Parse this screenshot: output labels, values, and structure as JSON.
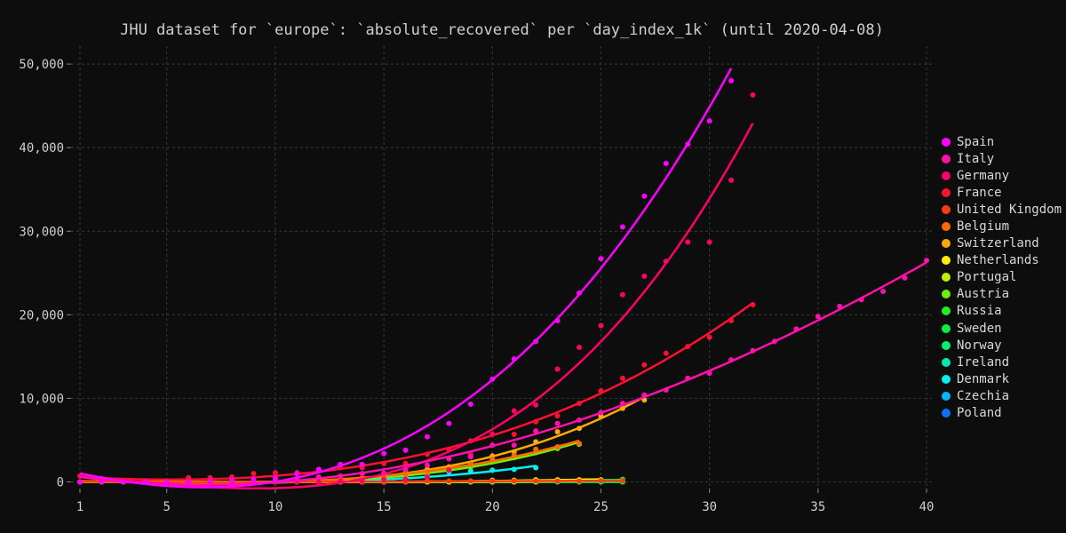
{
  "chart_data": {
    "type": "scatter",
    "title": "JHU dataset for `europe`: `absolute_recovered` per `day_index_1k` (until 2020-04-08)",
    "xlabel": "",
    "ylabel": "",
    "xlim": [
      1,
      40
    ],
    "ylim": [
      -800,
      51500
    ],
    "x_ticks": [
      1,
      5,
      10,
      15,
      20,
      25,
      30,
      35,
      40
    ],
    "y_ticks": [
      0,
      10000,
      20000,
      30000,
      40000,
      50000
    ],
    "y_tick_labels": [
      "0",
      "10,000",
      "20,000",
      "30,000",
      "40,000",
      "50,000"
    ],
    "grid": true,
    "legend_position": "right",
    "series": [
      {
        "name": "Spain",
        "color": "#ff00ff",
        "x": [
          1,
          2,
          3,
          4,
          5,
          6,
          7,
          8,
          9,
          10,
          11,
          12,
          13,
          14,
          15,
          16,
          17,
          18,
          19,
          20,
          21,
          22,
          23,
          24,
          25,
          26,
          27,
          28,
          29,
          30,
          31
        ],
        "y": [
          0,
          0,
          0,
          0,
          0,
          0,
          100,
          200,
          300,
          500,
          1000,
          1500,
          2100,
          2100,
          3400,
          3800,
          5400,
          7000,
          9300,
          12300,
          14700,
          16800,
          19300,
          22600,
          26700,
          30500,
          34200,
          38100,
          40400,
          43200,
          48000
        ]
      },
      {
        "name": "Italy",
        "color": "#ff10a8",
        "x": [
          1,
          2,
          3,
          4,
          5,
          6,
          7,
          8,
          9,
          10,
          11,
          12,
          13,
          14,
          15,
          16,
          17,
          18,
          19,
          20,
          21,
          22,
          23,
          24,
          25,
          26,
          27,
          28,
          29,
          30,
          31,
          32,
          33,
          34,
          35,
          36,
          37,
          38,
          39,
          40
        ],
        "y": [
          0,
          0,
          0,
          0,
          0,
          50,
          50,
          50,
          50,
          150,
          400,
          600,
          700,
          1000,
          1050,
          1450,
          2000,
          2750,
          3000,
          4400,
          4400,
          6100,
          7000,
          7400,
          8300,
          9400,
          10400,
          11000,
          12400,
          13000,
          14600,
          15700,
          16800,
          18300,
          19800,
          21000,
          21800,
          22800,
          24400,
          26500
        ]
      },
      {
        "name": "Germany",
        "color": "#ff0066",
        "x": [
          1,
          2,
          3,
          4,
          5,
          6,
          7,
          8,
          9,
          10,
          11,
          12,
          13,
          14,
          15,
          16,
          17,
          18,
          19,
          20,
          21,
          22,
          23,
          24,
          25,
          26,
          27,
          28,
          29,
          30,
          31,
          32
        ],
        "y": [
          0,
          0,
          0,
          0,
          0,
          0,
          0,
          0,
          0,
          0,
          0,
          0,
          100,
          100,
          300,
          300,
          600,
          1400,
          3300,
          5700,
          8500,
          9200,
          13500,
          16100,
          18700,
          22400,
          24600,
          26400,
          28700,
          28700,
          36100,
          46300
        ]
      },
      {
        "name": "France",
        "color": "#ff1030",
        "x": [
          1,
          2,
          3,
          4,
          5,
          6,
          7,
          8,
          9,
          10,
          11,
          12,
          13,
          14,
          15,
          16,
          17,
          18,
          19,
          20,
          21,
          22,
          23,
          24,
          25,
          26,
          27,
          28,
          29,
          30,
          31,
          32
        ],
        "y": [
          700,
          400,
          100,
          0,
          0,
          500,
          500,
          600,
          1000,
          1100,
          1100,
          1500,
          1700,
          1700,
          2200,
          2200,
          3300,
          3900,
          4900,
          5700,
          5700,
          7200,
          7900,
          9400,
          10900,
          12400,
          14000,
          15400,
          16200,
          17300,
          19300,
          21200
        ]
      },
      {
        "name": "United Kingdom",
        "color": "#ff3a12",
        "x": [
          1,
          2,
          3,
          4,
          5,
          6,
          7,
          8,
          9,
          10,
          11,
          12,
          13,
          14,
          15,
          16,
          17,
          18,
          19,
          20,
          21,
          22,
          23,
          24,
          25,
          26
        ],
        "y": [
          0,
          0,
          0,
          0,
          0,
          0,
          0,
          0,
          0,
          0,
          0,
          0,
          0,
          0,
          0,
          0,
          100,
          100,
          100,
          100,
          100,
          100,
          100,
          100,
          150,
          150
        ]
      },
      {
        "name": "Belgium",
        "color": "#ff6a00",
        "x": [
          1,
          2,
          3,
          4,
          5,
          6,
          7,
          8,
          9,
          10,
          11,
          12,
          13,
          14,
          15,
          16,
          17,
          18,
          19,
          20,
          21,
          22,
          23,
          24
        ],
        "y": [
          0,
          0,
          0,
          0,
          0,
          0,
          0,
          0,
          0,
          0,
          0,
          0,
          300,
          400,
          700,
          900,
          1200,
          1500,
          2100,
          2700,
          3200,
          3900,
          4200,
          4600
        ]
      },
      {
        "name": "Switzerland",
        "color": "#ffaa00",
        "x": [
          1,
          2,
          3,
          4,
          5,
          6,
          7,
          8,
          9,
          10,
          11,
          12,
          13,
          14,
          15,
          16,
          17,
          18,
          19,
          20,
          21,
          22,
          23,
          24,
          25,
          26,
          27
        ],
        "y": [
          0,
          0,
          0,
          0,
          0,
          0,
          0,
          0,
          0,
          0,
          0,
          0,
          100,
          200,
          500,
          1100,
          1500,
          1800,
          2200,
          3100,
          3600,
          4800,
          6000,
          6400,
          7900,
          8800,
          9800
        ]
      },
      {
        "name": "Netherlands",
        "color": "#ffee00",
        "x": [
          1,
          2,
          3,
          4,
          5,
          6,
          7,
          8,
          9,
          10,
          11,
          12,
          13,
          14,
          15,
          16,
          17,
          18,
          19,
          20,
          21,
          22,
          23,
          24,
          25
        ],
        "y": [
          0,
          0,
          0,
          0,
          0,
          0,
          0,
          0,
          0,
          0,
          0,
          0,
          0,
          0,
          0,
          0,
          0,
          0,
          100,
          200,
          200,
          250,
          250,
          250,
          250
        ]
      },
      {
        "name": "Portugal",
        "color": "#c0f000",
        "x": [
          1,
          2,
          3,
          4,
          5,
          6,
          7,
          8,
          9,
          10,
          11,
          12,
          13,
          14,
          15,
          16,
          17,
          18,
          19,
          20,
          21,
          22,
          23,
          24,
          25
        ],
        "y": [
          0,
          0,
          0,
          0,
          0,
          0,
          0,
          0,
          0,
          0,
          0,
          0,
          0,
          0,
          0,
          0,
          0,
          0,
          0,
          0,
          0,
          0,
          100,
          100,
          150
        ]
      },
      {
        "name": "Austria",
        "color": "#70f000",
        "x": [
          1,
          2,
          3,
          4,
          5,
          6,
          7,
          8,
          9,
          10,
          11,
          12,
          13,
          14,
          15,
          16,
          17,
          18,
          19,
          20,
          21,
          22,
          23,
          24
        ],
        "y": [
          0,
          0,
          0,
          0,
          0,
          0,
          0,
          0,
          0,
          0,
          0,
          0,
          100,
          200,
          400,
          600,
          1000,
          1400,
          1800,
          2500,
          2900,
          3500,
          4000,
          4500
        ]
      },
      {
        "name": "Russia",
        "color": "#20f020",
        "x": [
          1,
          2,
          3,
          4,
          5,
          6,
          7,
          8,
          9,
          10,
          11,
          12,
          13,
          14,
          15,
          16,
          17,
          18,
          19,
          20,
          21,
          22,
          23,
          24,
          25,
          26
        ],
        "y": [
          0,
          0,
          0,
          0,
          0,
          0,
          0,
          0,
          0,
          0,
          0,
          0,
          0,
          0,
          0,
          0,
          0,
          0,
          0,
          0,
          50,
          50,
          100,
          150,
          200,
          300
        ]
      },
      {
        "name": "Sweden",
        "color": "#00f040",
        "x": [
          1,
          2,
          3,
          4,
          5,
          6,
          7,
          8,
          9,
          10,
          11,
          12,
          13,
          14,
          15,
          16,
          17,
          18,
          19,
          20,
          21,
          22,
          23,
          24,
          25,
          26
        ],
        "y": [
          0,
          0,
          0,
          0,
          0,
          0,
          0,
          0,
          0,
          0,
          0,
          0,
          0,
          0,
          0,
          0,
          0,
          0,
          0,
          0,
          0,
          0,
          0,
          0,
          0,
          0
        ]
      },
      {
        "name": "Norway",
        "color": "#00f070",
        "x": [
          1,
          2,
          3,
          4,
          5,
          6,
          7,
          8,
          9,
          10,
          11,
          12,
          13,
          14,
          15,
          16,
          17,
          18,
          19,
          20,
          21,
          22,
          23,
          24,
          25,
          26
        ],
        "y": [
          0,
          0,
          0,
          0,
          0,
          0,
          0,
          0,
          0,
          0,
          0,
          0,
          0,
          0,
          0,
          0,
          0,
          0,
          0,
          0,
          0,
          0,
          0,
          0,
          0,
          0
        ]
      },
      {
        "name": "Ireland",
        "color": "#00e8b0",
        "x": [
          1,
          2,
          3,
          4,
          5,
          6,
          7,
          8,
          9,
          10,
          11,
          12,
          13,
          14,
          15,
          16,
          17,
          18,
          19,
          20,
          21,
          22
        ],
        "y": [
          0,
          0,
          0,
          0,
          0,
          0,
          0,
          0,
          0,
          0,
          0,
          0,
          0,
          0,
          0,
          0,
          0,
          0,
          0,
          0,
          0,
          0
        ]
      },
      {
        "name": "Denmark",
        "color": "#00f0f0",
        "x": [
          1,
          2,
          3,
          4,
          5,
          6,
          7,
          8,
          9,
          10,
          11,
          12,
          13,
          14,
          15,
          16,
          17,
          18,
          19,
          20,
          21,
          22
        ],
        "y": [
          0,
          0,
          0,
          0,
          0,
          0,
          0,
          0,
          0,
          0,
          0,
          0,
          0,
          0,
          100,
          200,
          600,
          1200,
          1300,
          1400,
          1500,
          1700
        ]
      },
      {
        "name": "Czechia",
        "color": "#00b8ff",
        "x": [
          1,
          2,
          3,
          4,
          5,
          6,
          7,
          8,
          9,
          10,
          11,
          12,
          13,
          14,
          15,
          16,
          17,
          18,
          19,
          20,
          21,
          22
        ],
        "y": [
          0,
          0,
          0,
          0,
          0,
          0,
          0,
          0,
          0,
          0,
          0,
          0,
          0,
          0,
          0,
          0,
          0,
          0,
          0,
          0,
          0,
          0
        ]
      },
      {
        "name": "Poland",
        "color": "#1070ff",
        "x": [
          1,
          2,
          3,
          4,
          5,
          6,
          7,
          8,
          9,
          10,
          11,
          12,
          13,
          14,
          15,
          16,
          17,
          18,
          19,
          20,
          21,
          22
        ],
        "y": [
          0,
          0,
          0,
          0,
          0,
          0,
          0,
          0,
          0,
          0,
          0,
          0,
          0,
          0,
          0,
          0,
          0,
          0,
          0,
          0,
          0,
          0
        ]
      }
    ]
  }
}
